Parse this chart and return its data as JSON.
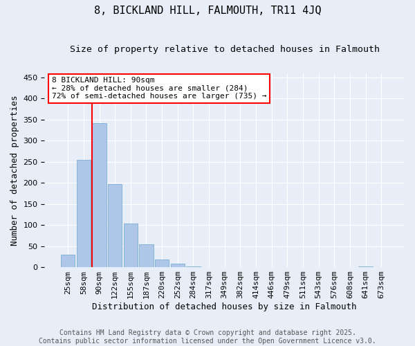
{
  "title": "8, BICKLAND HILL, FALMOUTH, TR11 4JQ",
  "subtitle": "Size of property relative to detached houses in Falmouth",
  "xlabel": "Distribution of detached houses by size in Falmouth",
  "ylabel": "Number of detached properties",
  "categories": [
    "25sqm",
    "58sqm",
    "90sqm",
    "122sqm",
    "155sqm",
    "187sqm",
    "220sqm",
    "252sqm",
    "284sqm",
    "317sqm",
    "349sqm",
    "382sqm",
    "414sqm",
    "446sqm",
    "479sqm",
    "511sqm",
    "543sqm",
    "576sqm",
    "608sqm",
    "641sqm",
    "673sqm"
  ],
  "values": [
    30,
    255,
    342,
    197,
    103,
    55,
    18,
    8,
    2,
    0,
    0,
    0,
    0,
    0,
    0,
    0,
    0,
    0,
    0,
    2,
    0
  ],
  "bar_color": "#aec6e8",
  "bar_edge_color": "#7bafd4",
  "vline_color": "red",
  "vline_index": 2,
  "annotation_text": "8 BICKLAND HILL: 90sqm\n← 28% of detached houses are smaller (284)\n72% of semi-detached houses are larger (735) →",
  "annotation_box_color": "white",
  "annotation_box_edge_color": "red",
  "ylim": [
    0,
    460
  ],
  "yticks": [
    0,
    50,
    100,
    150,
    200,
    250,
    300,
    350,
    400,
    450
  ],
  "background_color": "#e8eef8",
  "plot_background_color": "#e8eef8",
  "footer_line1": "Contains HM Land Registry data © Crown copyright and database right 2025.",
  "footer_line2": "Contains public sector information licensed under the Open Government Licence v3.0.",
  "title_fontsize": 11,
  "subtitle_fontsize": 9.5,
  "xlabel_fontsize": 9,
  "ylabel_fontsize": 9,
  "tick_fontsize": 8,
  "annotation_fontsize": 8,
  "footer_fontsize": 7
}
